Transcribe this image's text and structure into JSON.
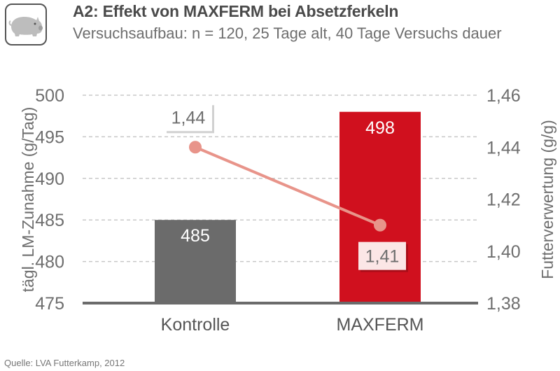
{
  "header": {
    "title": "A2: Effekt von MAXFERM bei Absetzferkeln",
    "subtitle": "Versuchsaufbau: n = 120, 25 Tage alt, 40 Tage Versuchs dauer",
    "logo_icon": "pig-icon"
  },
  "source": "Quelle: LVA Futterkamp, 2012",
  "chart_data": {
    "type": "bar",
    "categories": [
      "Kontrolle",
      "MAXFERM"
    ],
    "series": [
      {
        "name": "tägl. LM-Zunahme (g/Tag)",
        "kind": "bar",
        "axis": "left",
        "values": [
          485,
          498
        ],
        "labels": [
          "485",
          "498"
        ],
        "colors": [
          "#6b6b6b",
          "#d0101e"
        ]
      },
      {
        "name": "Futterverwertung (g/g)",
        "kind": "line",
        "axis": "right",
        "values": [
          1.44,
          1.41
        ],
        "labels": [
          "1,44",
          "1,41"
        ],
        "color": "#e8948a"
      }
    ],
    "y_left": {
      "label": "tägl. LM-Zunahme (g/Tag)",
      "range": [
        475,
        500
      ],
      "ticks": [
        "475",
        "480",
        "485",
        "490",
        "495",
        "500"
      ]
    },
    "y_right": {
      "label": "Futterverwertung (g/g)",
      "range": [
        1.38,
        1.46
      ],
      "ticks": [
        "1,38",
        "1,40",
        "1,42",
        "1,44",
        "1,46"
      ]
    },
    "grid": true,
    "gridColor": "#c8c8c8",
    "axisColor": "#6b6b6b"
  }
}
